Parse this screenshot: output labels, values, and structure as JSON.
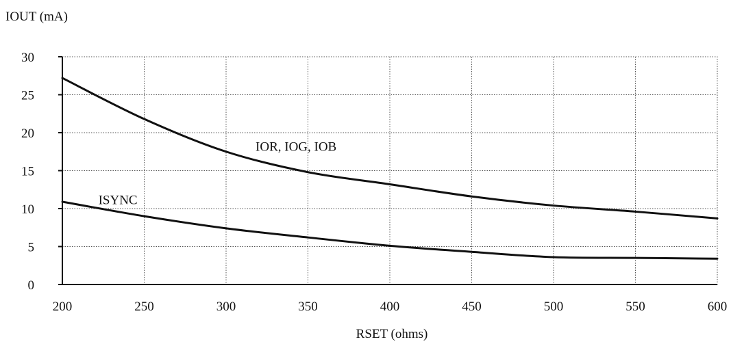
{
  "chart_data": {
    "type": "line",
    "ylabel": "IOUT (mA)",
    "xlabel": "RSET (ohms)",
    "xlim": [
      200,
      600
    ],
    "ylim": [
      0,
      30
    ],
    "x_ticks": [
      "200",
      "250",
      "300",
      "350",
      "400",
      "450",
      "500",
      "550",
      "600"
    ],
    "y_ticks": [
      "0",
      "5",
      "10",
      "15",
      "20",
      "25",
      "30"
    ],
    "grid": true,
    "series": [
      {
        "name": "IOR, IOG, IOB",
        "x": [
          200,
          250,
          300,
          350,
          400,
          450,
          500,
          550,
          600
        ],
        "y": [
          27.2,
          21.8,
          17.5,
          14.8,
          13.2,
          11.6,
          10.4,
          9.6,
          8.7
        ]
      },
      {
        "name": "ISYNC",
        "x": [
          200,
          250,
          300,
          350,
          400,
          450,
          500,
          550,
          600
        ],
        "y": [
          10.9,
          9.0,
          7.4,
          6.2,
          5.1,
          4.3,
          3.6,
          3.5,
          3.4
        ]
      }
    ],
    "series_label_positions": [
      {
        "x": 318,
        "y": 17.6
      },
      {
        "x": 222,
        "y": 10.6
      }
    ]
  }
}
